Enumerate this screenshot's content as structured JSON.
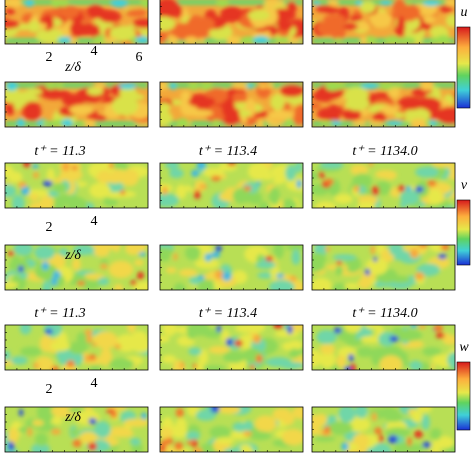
{
  "groups": [
    {
      "colorbar": "u",
      "axis": {
        "label": "z/δ",
        "ticks": [
          "2",
          "4",
          "6"
        ]
      }
    },
    {
      "colorbar": "v",
      "times": [
        "t⁺ = 11.3",
        "t⁺ = 113.4",
        "t⁺ = 1134.0"
      ],
      "axis": {
        "label": "z/δ",
        "ticks": [
          "2",
          "4"
        ]
      }
    },
    {
      "colorbar": "w",
      "times": [
        "t⁺ = 11.3",
        "t⁺ = 113.4",
        "t⁺ = 1134.0"
      ],
      "axis": {
        "label": "z/δ",
        "ticks": [
          "2",
          "4"
        ]
      }
    }
  ]
}
